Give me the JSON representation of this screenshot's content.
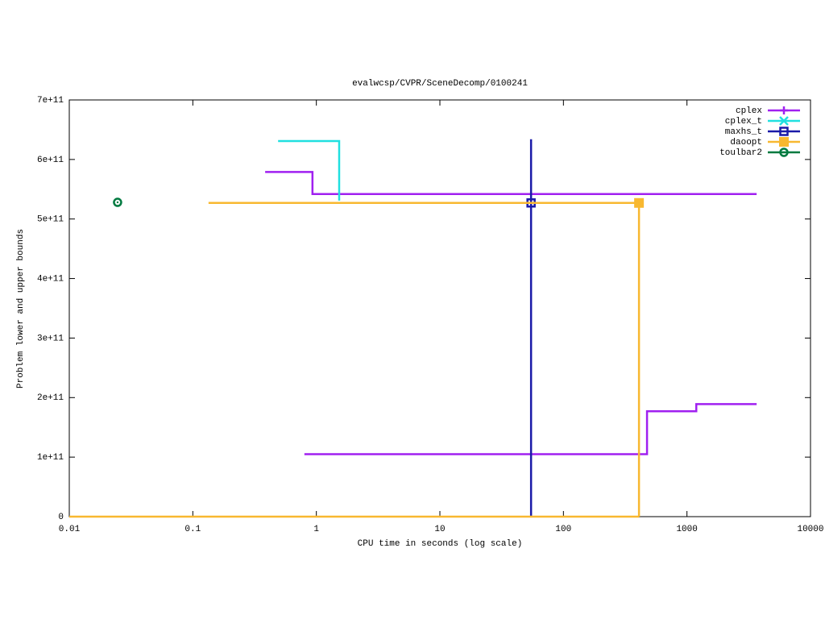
{
  "chart_data": {
    "type": "line",
    "step": true,
    "x_scale": "log",
    "title": "evalwcsp/CVPR/SceneDecomp/0100241",
    "x_label": "CPU time in seconds (log scale)",
    "y_label": "Problem lower and upper bounds",
    "xlim": [
      0.01,
      10000
    ],
    "xticks": [
      0.01,
      0.1,
      1,
      10,
      100,
      1000,
      10000
    ],
    "ylim": [
      0,
      700000000000
    ],
    "yticks": [
      0,
      {
        "value": 100000000000,
        "label": "1e+11"
      },
      {
        "value": 200000000000,
        "label": "2e+11"
      },
      {
        "value": 300000000000,
        "label": "3e+11"
      },
      {
        "value": 400000000000,
        "label": "4e+11"
      },
      {
        "value": 500000000000,
        "label": "5e+11"
      },
      {
        "value": 600000000000,
        "label": "6e+11"
      },
      {
        "value": 700000000000,
        "label": "7e+11"
      }
    ],
    "legend": "top-right",
    "series": [
      {
        "name": "cplex",
        "color": "#a020f0",
        "marker": "plus",
        "x": [
          0.385,
          0.93,
          3665,
          null,
          0.8,
          475,
          1190,
          3665
        ],
        "values": [
          579000000000,
          542000000000,
          542000000000,
          null,
          105000000000,
          177000000000,
          189000000000,
          189000000000
        ]
      },
      {
        "name": "cplex_t",
        "color": "#20e0e0",
        "marker": "cross",
        "x": [
          0.49,
          1.53
        ],
        "values": [
          631000000000,
          531000000000
        ]
      },
      {
        "name": "maxhs_t",
        "color": "#1a1aa8",
        "marker": "square",
        "x": [
          54.7,
          54.7
        ],
        "values": [
          0,
          634000000000
        ],
        "points": {
          "x": [
            54.7
          ],
          "values": [
            527000000000
          ]
        }
      },
      {
        "name": "daoopt",
        "color": "#f8b830",
        "marker": "filled-square",
        "x": [
          0.134,
          409,
          null,
          0.01,
          409
        ],
        "values": [
          527000000000,
          0,
          null,
          0,
          0
        ],
        "points": {
          "x": [
            409
          ],
          "values": [
            527000000000
          ]
        }
      },
      {
        "name": "toulbar2",
        "color": "#007a40",
        "marker": "circle",
        "x": [],
        "values": [],
        "points": {
          "x": [
            0.0246
          ],
          "values": [
            528000000000
          ]
        }
      }
    ]
  }
}
